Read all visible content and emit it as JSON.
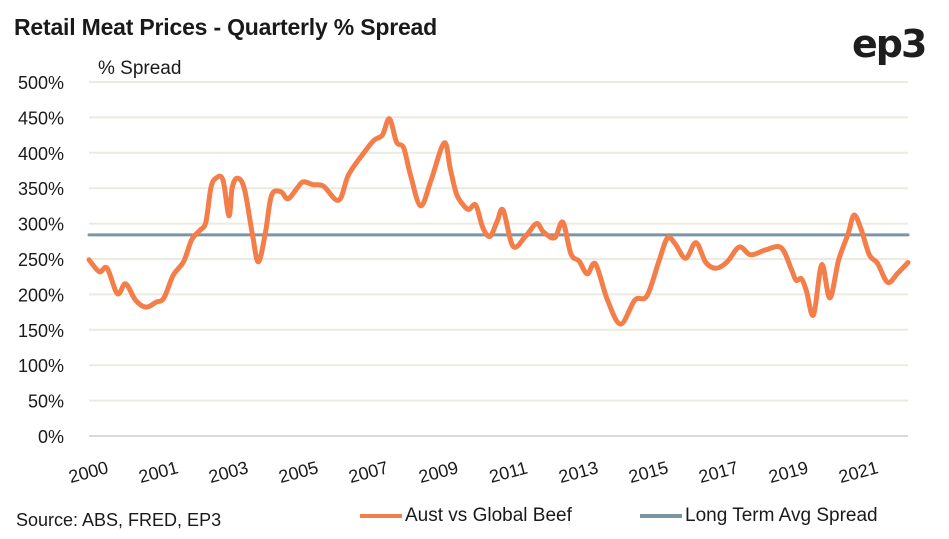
{
  "header": {
    "title": "Retail Meat Prices - Quarterly % Spread",
    "logo_text": "ep3"
  },
  "footer": {
    "source": "Source: ABS, FRED, EP3"
  },
  "chart_data": {
    "type": "line",
    "title": "Retail Meat Prices - Quarterly % Spread",
    "xlabel": "",
    "ylabel": "% Spread",
    "ylim": [
      0,
      500
    ],
    "xlim": [
      2000,
      2022.4
    ],
    "y_ticks": [
      "0%",
      "50%",
      "100%",
      "150%",
      "200%",
      "250%",
      "300%",
      "350%",
      "400%",
      "450%",
      "500%"
    ],
    "y_tick_values": [
      0,
      50,
      100,
      150,
      200,
      250,
      300,
      350,
      400,
      450,
      500
    ],
    "x_tick_labels": [
      "2000",
      "2001",
      "2003",
      "2005",
      "2007",
      "2009",
      "2011",
      "2013",
      "2015",
      "2017",
      "2019",
      "2021"
    ],
    "x_tick_values": [
      2000,
      2002,
      2004,
      2006,
      2008,
      2010,
      2012,
      2014,
      2016,
      2018,
      2020,
      2022
    ],
    "grid": true,
    "legend_position": "bottom",
    "series": [
      {
        "name": "Aust vs Global Beef",
        "color": "#F47E4A",
        "x": [
          2000.0,
          2000.29,
          2000.51,
          2000.8,
          2001.03,
          2001.31,
          2001.6,
          2001.89,
          2002.11,
          2002.37,
          2002.66,
          2002.89,
          2003.11,
          2003.29,
          2003.43,
          2003.57,
          2003.77,
          2003.94,
          2004.03,
          2004.17,
          2004.37,
          2004.6,
          2004.77,
          2004.97,
          2005.14,
          2005.4,
          2005.6,
          2005.86,
          2006.03,
          2006.31,
          2006.6,
          2007.03,
          2007.31,
          2007.74,
          2008.03,
          2008.26,
          2008.46,
          2008.66,
          2008.86,
          2009.06,
          2009.34,
          2009.63,
          2010.0,
          2010.17,
          2010.34,
          2010.51,
          2010.69,
          2010.89,
          2011.09,
          2011.29,
          2011.49,
          2011.66,
          2011.94,
          2012.29,
          2012.6,
          2012.8,
          2013.11,
          2013.34,
          2013.57,
          2013.8,
          2014.03,
          2014.26,
          2014.6,
          2014.97,
          2015.37,
          2015.71,
          2016.06,
          2016.29,
          2016.51,
          2016.8,
          2017.09,
          2017.37,
          2017.66,
          2017.97,
          2018.31,
          2018.63,
          2019.06,
          2019.49,
          2019.77,
          2019.91,
          2020.06,
          2020.2,
          2020.4,
          2020.63,
          2020.86,
          2021.11,
          2021.37,
          2021.54,
          2021.74,
          2021.97,
          2022.2,
          2022.49,
          2022.77,
          2023.06
        ],
        "values": [
          249,
          232,
          237,
          201,
          215,
          192,
          182,
          189,
          195,
          227,
          246,
          277,
          290,
          302,
          350,
          364,
          362,
          311,
          350,
          364,
          350,
          285,
          246,
          288,
          340,
          345,
          335,
          350,
          359,
          355,
          353,
          333,
          369,
          400,
          418,
          425,
          448,
          415,
          407,
          367,
          325,
          361,
          414,
          378,
          343,
          328,
          320,
          326,
          294,
          282,
          303,
          319,
          268,
          282,
          300,
          288,
          280,
          302,
          257,
          247,
          229,
          243,
          192,
          158,
          192,
          198,
          249,
          280,
          271,
          251,
          273,
          245,
          237,
          246,
          267,
          256,
          263,
          266,
          236,
          220,
          222,
          205,
          171,
          242,
          195,
          249,
          285,
          312,
          292,
          256,
          244,
          217,
          230,
          245
        ]
      },
      {
        "name": "Long Term Avg Spread",
        "color": "#7A95A3",
        "x": [
          2000.0,
          2023.06
        ],
        "values": [
          284,
          284
        ]
      }
    ]
  }
}
